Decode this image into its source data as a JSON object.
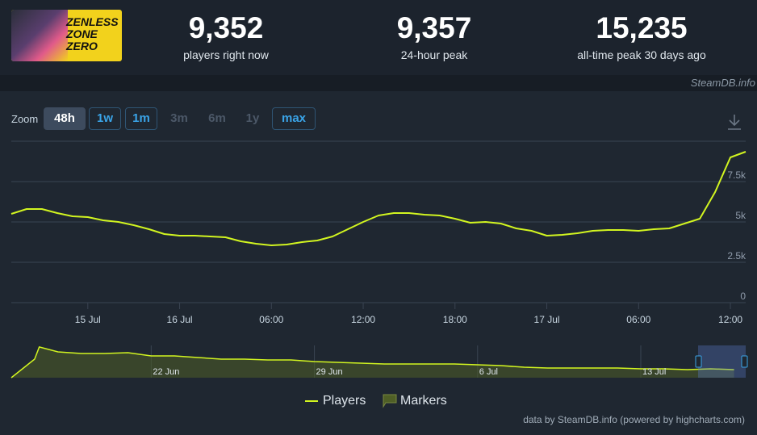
{
  "header": {
    "logo_text": "ZENLESS ZONE ZERO",
    "stats": [
      {
        "value": "9,352",
        "label": "players right now"
      },
      {
        "value": "9,357",
        "label": "24-hour peak"
      },
      {
        "value": "15,235",
        "label": "all-time peak 30 days ago"
      }
    ],
    "watermark": "SteamDB.info"
  },
  "zoom": {
    "label": "Zoom",
    "buttons": [
      {
        "text": "48h",
        "state": "active"
      },
      {
        "text": "1w",
        "state": "enabled"
      },
      {
        "text": "1m",
        "state": "enabled"
      },
      {
        "text": "3m",
        "state": "disabled"
      },
      {
        "text": "6m",
        "state": "disabled"
      },
      {
        "text": "1y",
        "state": "disabled"
      },
      {
        "text": "max",
        "state": "enabled"
      }
    ]
  },
  "chart_data": {
    "type": "line",
    "grid": true,
    "xlim": [
      -5,
      43
    ],
    "xticks": [
      {
        "value": 0,
        "label": "15 Jul"
      },
      {
        "value": 6,
        "label": "16 Jul"
      },
      {
        "value": 12,
        "label": "06:00"
      },
      {
        "value": 18,
        "label": "12:00"
      },
      {
        "value": 24,
        "label": "18:00"
      },
      {
        "value": 30,
        "label": "17 Jul"
      },
      {
        "value": 36,
        "label": "06:00"
      },
      {
        "value": 42,
        "label": "12:00"
      }
    ],
    "ylim": [
      0,
      10000
    ],
    "yticks": [
      0,
      {
        "value": 2500,
        "label": "2.5k"
      },
      {
        "value": 5000,
        "label": "5k"
      },
      {
        "value": 7500,
        "label": "7.5k"
      }
    ],
    "series": [
      {
        "name": "Players",
        "color": "#d2f520",
        "x": [
          -5,
          -4,
          -3,
          -2,
          -1,
          0,
          1,
          2,
          3,
          4,
          5,
          6,
          7,
          8,
          9,
          10,
          11,
          12,
          13,
          14,
          15,
          16,
          17,
          18,
          19,
          20,
          21,
          22,
          23,
          24,
          25,
          26,
          27,
          28,
          29,
          30,
          31,
          32,
          33,
          34,
          35,
          36,
          37,
          38,
          39,
          40,
          41,
          42,
          43
        ],
        "values": [
          5500,
          5800,
          5800,
          5550,
          5350,
          5300,
          5100,
          5000,
          4800,
          4550,
          4250,
          4150,
          4150,
          4100,
          4050,
          3800,
          3650,
          3550,
          3600,
          3750,
          3850,
          4100,
          4550,
          5000,
          5400,
          5550,
          5550,
          5450,
          5400,
          5200,
          4950,
          5000,
          4900,
          4600,
          4450,
          4150,
          4200,
          4300,
          4450,
          4500,
          4500,
          4450,
          4550,
          4600,
          4900,
          5200,
          6850,
          9000,
          9350
        ]
      }
    ],
    "marker_legend": {
      "name": "Markers",
      "color": "#4f5f26"
    },
    "navigator": {
      "xlim": [
        -6,
        25.5
      ],
      "ylim": [
        0,
        16000
      ],
      "xticks": [
        {
          "value": 0,
          "label": "22 Jun"
        },
        {
          "value": 7,
          "label": "29 Jun"
        },
        {
          "value": 14,
          "label": "6 Jul"
        },
        {
          "value": 21,
          "label": "13 Jul"
        }
      ],
      "x": [
        -6,
        -5,
        -4.8,
        -4,
        -3,
        -2,
        -1,
        0,
        1,
        2,
        3,
        4,
        5,
        6,
        7,
        8,
        9,
        10,
        11,
        12,
        13,
        14,
        15,
        16,
        17,
        18,
        19,
        20,
        21,
        22,
        23,
        24,
        25
      ],
      "values": [
        0,
        9200,
        15235,
        12800,
        12000,
        12000,
        12400,
        10800,
        10800,
        10000,
        9200,
        9200,
        8800,
        8800,
        8000,
        7600,
        7200,
        6800,
        6800,
        6800,
        6800,
        6400,
        6000,
        5200,
        4800,
        4800,
        4800,
        4800,
        4400,
        4400,
        4000,
        4400,
        4000
      ]
    },
    "credits": "data by SteamDB.info (powered by highcharts.com)"
  }
}
